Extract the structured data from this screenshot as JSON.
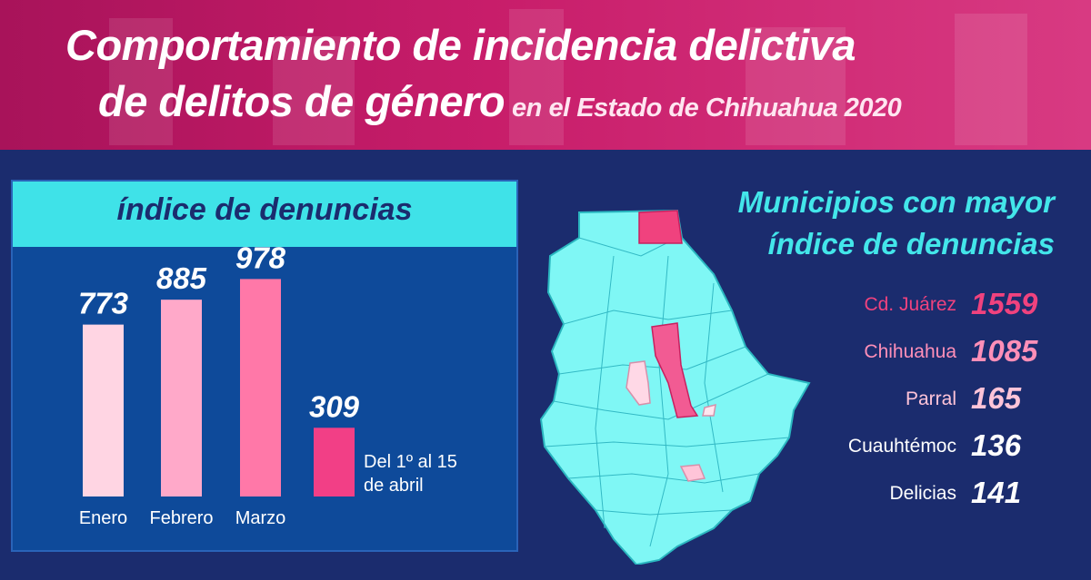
{
  "header": {
    "title_line1": "Comportamiento de incidencia delictiva",
    "title_line2": "de delitos de género",
    "title_sub": "en el Estado de Chihuahua 2020"
  },
  "chart_data": {
    "type": "bar",
    "title": "índice de denuncias",
    "categories": [
      "Enero",
      "Febrero",
      "Marzo",
      "Del 1º al 15 de abril"
    ],
    "values": [
      773,
      885,
      978,
      309
    ],
    "category_label_lines": [
      [
        "Enero"
      ],
      [
        "Febrero"
      ],
      [
        "Marzo"
      ],
      [
        "Del 1º al 15",
        "de abril"
      ]
    ],
    "bar_colors": [
      "#ffd5e3",
      "#ffa9c9",
      "#ff78a8",
      "#f23f86"
    ],
    "ylim": [
      0,
      1000
    ],
    "grid": false
  },
  "municipios": {
    "title_line1": "Municipios con mayor",
    "title_line2": "índice de denuncias",
    "items": [
      {
        "name": "Cd. Juárez",
        "value": "1559",
        "color": "#f0427e"
      },
      {
        "name": "Chihuahua",
        "value": "1085",
        "color": "#ff8fb8"
      },
      {
        "name": "Parral",
        "value": "165",
        "color": "#ffc4d8"
      },
      {
        "name": "Cuauhtémoc",
        "value": "136",
        "color": "#ffffff"
      },
      {
        "name": "Delicias",
        "value": "141",
        "color": "#ffffff"
      }
    ]
  },
  "colors": {
    "background": "#1b2c6e",
    "header": "#c81d6a",
    "panel": "#0e4a9a",
    "accent_cyan": "#3fe2e8",
    "map_fill": "#7ff7f5",
    "map_highlight_juarez": "#f0427e",
    "map_highlight_chihuahua": "#f25b93",
    "map_highlight_parral": "#ffc4d8"
  }
}
